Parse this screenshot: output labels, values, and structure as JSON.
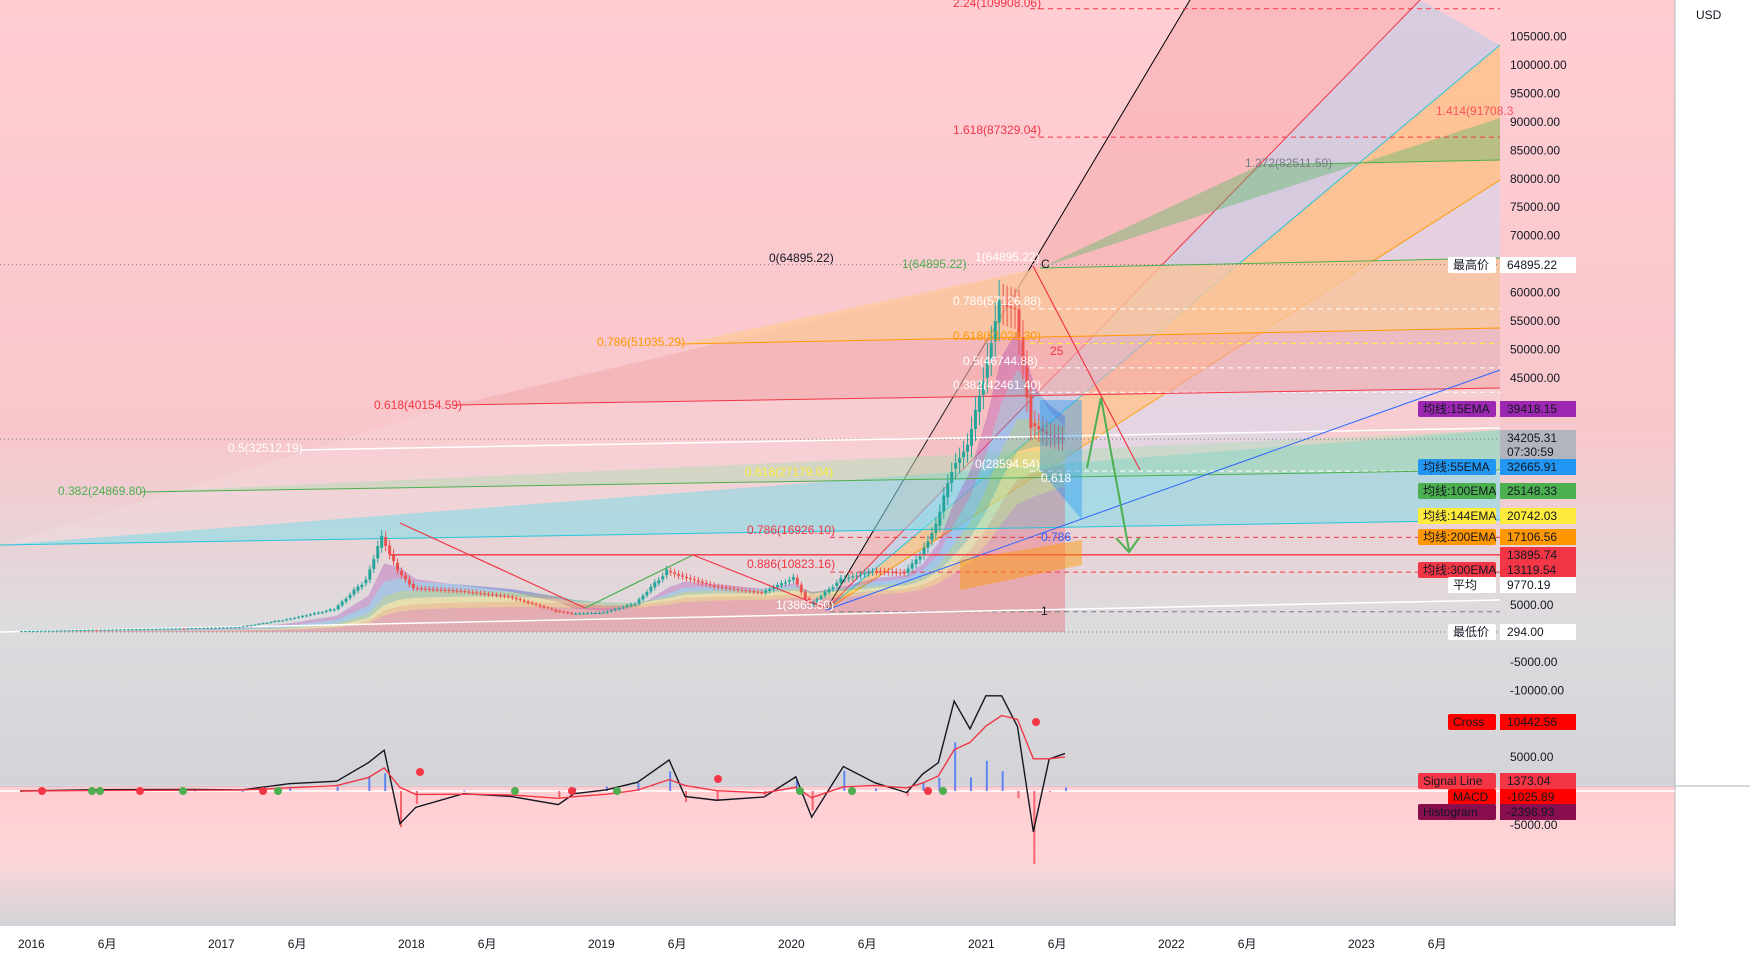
{
  "currency": "USD",
  "axis_labels": [
    "105000.00",
    "100000.00",
    "95000.00",
    "90000.00",
    "85000.00",
    "80000.00",
    "75000.00",
    "70000.00",
    "60000.00",
    "55000.00",
    "50000.00",
    "45000.00",
    "5000.00",
    "-5000.00",
    "-10000.00"
  ],
  "macd_axis_labels": [
    "5000.00",
    "-5000.00"
  ],
  "time_labels": [
    "2016",
    "6月",
    "2017",
    "6月",
    "2018",
    "6月",
    "2019",
    "6月",
    "2020",
    "6月",
    "2021",
    "6月",
    "2022",
    "6月",
    "2023",
    "6月"
  ],
  "fib_labels": [
    {
      "text": "2.24(109908.06)",
      "color": "#f23645",
      "value": 109908.06
    },
    {
      "text": "1.618(87329.04)",
      "color": "#f23645",
      "value": 87329.04
    },
    {
      "text": "1.414(91708.3",
      "color": "#f7525f",
      "value": 91708.3
    },
    {
      "text": "1.272(82511.59)",
      "color": "#787b86",
      "value": 82511.59
    },
    {
      "text": "0(64895.22)",
      "color": "#131722",
      "value": 64895.22
    },
    {
      "text": "1(64895.22)",
      "color": "#4caf50",
      "value": 64895.22
    },
    {
      "text": "1(64895.22)",
      "color": "#ffffff",
      "value": 64895.22
    },
    {
      "text": "0.786(57126.88)",
      "color": "#ffffff",
      "value": 57126.88
    },
    {
      "text": "0.618(51028.30)",
      "color": "#ff9800",
      "value": 51028.3
    },
    {
      "text": "0.786(51035.29)",
      "color": "#ff9800",
      "value": 51035.29
    },
    {
      "text": "0.5(46744.88)",
      "color": "#ffffff",
      "value": 46744.88
    },
    {
      "text": "0.382(42461.40)",
      "color": "#ffffff",
      "value": 42461.4
    },
    {
      "text": "0.618(40154.59)",
      "color": "#f23645",
      "value": 40154.59
    },
    {
      "text": "0.5(32512.19)",
      "color": "#ffffff",
      "value": 32512.19
    },
    {
      "text": "0(28594.54)",
      "color": "#ffffff",
      "value": 28594.54
    },
    {
      "text": "0.618(27179.04)",
      "color": "#ffeb3b",
      "value": 27179.04
    },
    {
      "text": "0.382(24869.80)",
      "color": "#4caf50",
      "value": 24869.8
    },
    {
      "text": "0.786(16926.10)",
      "color": "#f23645",
      "value": 16926.1
    },
    {
      "text": "0.886(10823.16)",
      "color": "#f23645",
      "value": 10823.16
    },
    {
      "text": "1(3865.50)",
      "color": "#ffffff",
      "value": 3865.5
    },
    {
      "text": "0.618",
      "color": "#ffffff",
      "value": null
    },
    {
      "text": "0.786",
      "color": "#2962ff",
      "value": null
    },
    {
      "text": "25",
      "color": "#f23645",
      "value": null
    },
    {
      "text": "C",
      "color": "#131722",
      "value": null
    },
    {
      "text": "1",
      "color": "#131722",
      "value": null
    }
  ],
  "price_badges": [
    {
      "label": "最高价",
      "value": "64895.22",
      "bg": "#ffffff",
      "fg": "#131722"
    },
    {
      "label": "均线:15EMA",
      "value": "39418.15",
      "bg": "#9c27b0",
      "fg": "#ffffff"
    },
    {
      "label": "",
      "value": "34205.31",
      "bg": "#b2b5be",
      "fg": "#131722"
    },
    {
      "label": "",
      "value": "07:30:59",
      "bg": "#b2b5be",
      "fg": "#131722"
    },
    {
      "label": "均线:55EMA",
      "value": "32665.91",
      "bg": "#2196f3",
      "fg": "#ffffff"
    },
    {
      "label": "均线:100EMA",
      "value": "25148.33",
      "bg": "#4caf50",
      "fg": "#ffffff"
    },
    {
      "label": "均线:144EMA",
      "value": "20742.03",
      "bg": "#ffeb3b",
      "fg": "#131722"
    },
    {
      "label": "均线:200EMA",
      "value": "17106.56",
      "bg": "#ff9800",
      "fg": "#131722"
    },
    {
      "label": "",
      "value": "13895.74",
      "bg": "#f23645",
      "fg": "#ffffff"
    },
    {
      "label": "均线:300EMA",
      "value": "13119.54",
      "bg": "#f23645",
      "fg": "#ffffff"
    },
    {
      "label": "平均",
      "value": "9770.19",
      "bg": "#ffffff",
      "fg": "#131722"
    },
    {
      "label": "最低价",
      "value": "294.00",
      "bg": "#ffffff",
      "fg": "#131722"
    }
  ],
  "macd_badges": [
    {
      "label": "Cross",
      "value": "10442.56",
      "bg": "#ff0000",
      "fg": "#ffffff"
    },
    {
      "label": "Signal Line",
      "value": "1373.04",
      "bg": "#f23645",
      "fg": "#ffffff"
    },
    {
      "label": "MACD",
      "value": "-1025.89",
      "bg": "#ff0000",
      "fg": "#ffffff"
    },
    {
      "label": "Histogram",
      "value": "-2398.93",
      "bg": "#880e4f",
      "fg": "#ffffff"
    }
  ],
  "chart_data": {
    "type": "candlestick",
    "title": "",
    "x_range": [
      "2016-01",
      "2023-10"
    ],
    "y_range": [
      -12000,
      111000
    ],
    "key_prices": {
      "high": 64895.22,
      "low": 294.0,
      "average": 9770.19,
      "last": 34205.31
    },
    "ema_lines": [
      {
        "name": "均线:15EMA",
        "value": 39418.15,
        "color": "#9c27b0"
      },
      {
        "name": "均线:55EMA",
        "value": 32665.91,
        "color": "#2196f3"
      },
      {
        "name": "均线:100EMA",
        "value": 25148.33,
        "color": "#4caf50"
      },
      {
        "name": "均线:144EMA",
        "value": 20742.03,
        "color": "#ffeb3b"
      },
      {
        "name": "均线:200EMA",
        "value": 17106.56,
        "color": "#ff9800"
      },
      {
        "name": "均线:300EMA",
        "value": 13119.54,
        "color": "#f23645"
      }
    ],
    "price_series": [
      {
        "date": "2016-01",
        "value": 430
      },
      {
        "date": "2016-06",
        "value": 680
      },
      {
        "date": "2016-12",
        "value": 960
      },
      {
        "date": "2017-03",
        "value": 1150
      },
      {
        "date": "2017-06",
        "value": 2500
      },
      {
        "date": "2017-09",
        "value": 4300
      },
      {
        "date": "2017-11",
        "value": 9500
      },
      {
        "date": "2017-12",
        "value": 17000
      },
      {
        "date": "2018-01",
        "value": 11000
      },
      {
        "date": "2018-02",
        "value": 8000
      },
      {
        "date": "2018-05",
        "value": 7500
      },
      {
        "date": "2018-08",
        "value": 6500
      },
      {
        "date": "2018-11",
        "value": 4000
      },
      {
        "date": "2018-12",
        "value": 3500
      },
      {
        "date": "2019-02",
        "value": 3700
      },
      {
        "date": "2019-04",
        "value": 5300
      },
      {
        "date": "2019-06",
        "value": 11000
      },
      {
        "date": "2019-07",
        "value": 10000
      },
      {
        "date": "2019-09",
        "value": 8300
      },
      {
        "date": "2019-12",
        "value": 7200
      },
      {
        "date": "2020-02",
        "value": 9800
      },
      {
        "date": "2020-03",
        "value": 5000
      },
      {
        "date": "2020-05",
        "value": 9500
      },
      {
        "date": "2020-07",
        "value": 11000
      },
      {
        "date": "2020-09",
        "value": 10700
      },
      {
        "date": "2020-10",
        "value": 13800
      },
      {
        "date": "2020-11",
        "value": 19000
      },
      {
        "date": "2020-12",
        "value": 29000
      },
      {
        "date": "2021-01",
        "value": 33000
      },
      {
        "date": "2021-02",
        "value": 45000
      },
      {
        "date": "2021-03",
        "value": 58000
      },
      {
        "date": "2021-04",
        "value": 57000
      },
      {
        "date": "2021-05",
        "value": 37000
      },
      {
        "date": "2021-06",
        "value": 35000
      },
      {
        "date": "2021-07",
        "value": 34205.31
      }
    ],
    "macd": {
      "series": [
        {
          "name": "MACD",
          "value": -1025.89
        },
        {
          "name": "Signal Line",
          "value": 1373.04
        },
        {
          "name": "Histogram",
          "value": -2398.93
        },
        {
          "name": "Cross",
          "value": 10442.56
        }
      ],
      "y_range": [
        -6000,
        14000
      ]
    }
  },
  "colors": {
    "bg_pink": "#ffcdd2",
    "bg_gray": "#d1d4dc",
    "up": "#26a69a",
    "down": "#ef5350"
  }
}
